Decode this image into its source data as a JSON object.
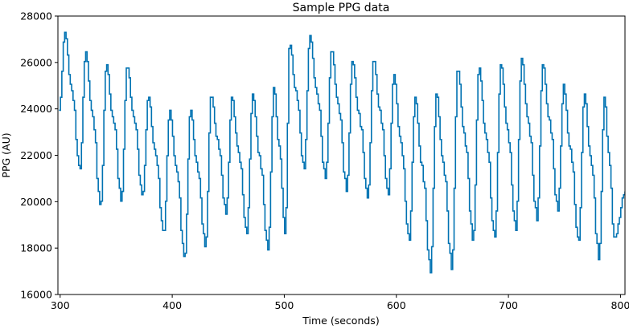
{
  "chart_data": {
    "type": "line",
    "title": "Sample PPG data",
    "xlabel": "Time (seconds)",
    "ylabel": "PPG (AU)",
    "xlim": [
      298,
      804
    ],
    "ylim": [
      16000,
      28000
    ],
    "xticks": [
      300,
      400,
      500,
      600,
      700,
      800
    ],
    "yticks": [
      16000,
      18000,
      20000,
      22000,
      24000,
      26000,
      28000
    ],
    "grid": false,
    "series": [
      {
        "color": "#0072B2",
        "cycles": [
          {
            "t": 304.0,
            "peak": 27300,
            "trough": 21300
          },
          {
            "t": 322.5,
            "peak": 26500,
            "trough": 19700
          },
          {
            "t": 341.0,
            "peak": 26000,
            "trough": 20000
          },
          {
            "t": 359.5,
            "peak": 25900,
            "trough": 20200
          },
          {
            "t": 378.5,
            "peak": 24500,
            "trough": 18600
          },
          {
            "t": 397.5,
            "peak": 24000,
            "trough": 17500
          },
          {
            "t": 416.0,
            "peak": 24000,
            "trough": 18000
          },
          {
            "t": 434.5,
            "peak": 24600,
            "trough": 19500
          },
          {
            "t": 453.0,
            "peak": 24500,
            "trough": 18600
          },
          {
            "t": 471.5,
            "peak": 24700,
            "trough": 17900
          },
          {
            "t": 490.5,
            "peak": 25000,
            "trough": 18600
          },
          {
            "t": 504.5,
            "peak": 26900,
            "trough": 21400
          },
          {
            "t": 522.5,
            "peak": 27200,
            "trough": 21000
          },
          {
            "t": 542.0,
            "peak": 26600,
            "trough": 20500
          },
          {
            "t": 560.5,
            "peak": 26100,
            "trough": 20100
          },
          {
            "t": 579.5,
            "peak": 26200,
            "trough": 20300
          },
          {
            "t": 597.5,
            "peak": 25500,
            "trough": 18300
          },
          {
            "t": 616.5,
            "peak": 24500,
            "trough": 17000
          },
          {
            "t": 635.5,
            "peak": 24700,
            "trough": 17100
          },
          {
            "t": 654.5,
            "peak": 25800,
            "trough": 18300
          },
          {
            "t": 673.5,
            "peak": 25800,
            "trough": 18400
          },
          {
            "t": 693.0,
            "peak": 26000,
            "trough": 18700
          },
          {
            "t": 711.5,
            "peak": 26200,
            "trough": 19200
          },
          {
            "t": 730.5,
            "peak": 26000,
            "trough": 19600
          },
          {
            "t": 749.0,
            "peak": 25000,
            "trough": 18200
          },
          {
            "t": 767.5,
            "peak": 24700,
            "trough": 17500
          },
          {
            "t": 785.5,
            "peak": 24500,
            "trough": 18300
          }
        ],
        "start": {
          "t": 299.0,
          "value": 24000
        },
        "end": {
          "t": 804.0,
          "value": 20400,
          "trough": 18400
        }
      }
    ]
  }
}
